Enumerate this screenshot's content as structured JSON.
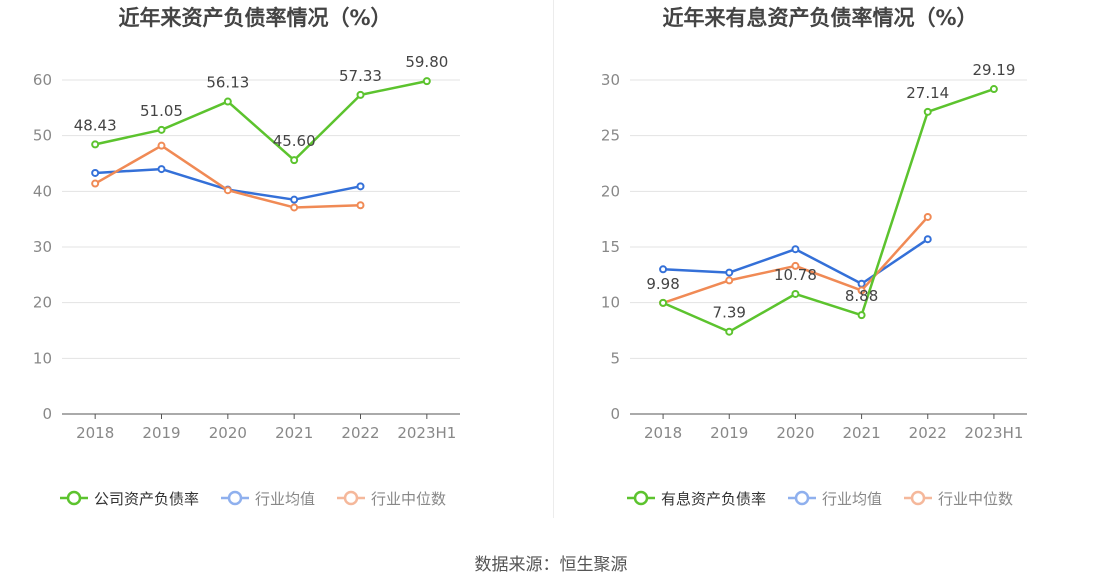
{
  "source": "数据来源：恒生聚源",
  "chart_data": [
    {
      "type": "line",
      "title": "近年来资产负债率情况（%）",
      "categories": [
        "2018",
        "2019",
        "2020",
        "2021",
        "2022",
        "2023H1"
      ],
      "ylim": [
        0,
        60
      ],
      "yticks": [
        0,
        10,
        20,
        30,
        40,
        50,
        60
      ],
      "grid": true,
      "legend_position": "bottom-left",
      "series": [
        {
          "name": "公司资产负债率",
          "color": "#5cc32e",
          "labels": true,
          "values": [
            48.43,
            51.05,
            56.13,
            45.6,
            57.33,
            59.8
          ]
        },
        {
          "name": "行业均值",
          "color": "#3470d8",
          "labels": false,
          "values": [
            43.3,
            44.0,
            40.3,
            38.5,
            40.9,
            null
          ]
        },
        {
          "name": "行业中位数",
          "color": "#f08a55",
          "labels": false,
          "values": [
            41.4,
            48.2,
            40.2,
            37.1,
            37.5,
            null
          ]
        }
      ]
    },
    {
      "type": "line",
      "title": "近年来有息资产负债率情况（%）",
      "categories": [
        "2018",
        "2019",
        "2020",
        "2021",
        "2022",
        "2023H1"
      ],
      "ylim": [
        0,
        30
      ],
      "yticks": [
        0,
        5,
        10,
        15,
        20,
        25,
        30
      ],
      "grid": true,
      "legend_position": "bottom-left",
      "series": [
        {
          "name": "有息资产负债率",
          "color": "#5cc32e",
          "labels": true,
          "values": [
            9.98,
            7.39,
            10.78,
            8.88,
            27.14,
            29.19
          ]
        },
        {
          "name": "行业均值",
          "color": "#3470d8",
          "labels": false,
          "values": [
            13.0,
            12.7,
            14.8,
            11.7,
            15.7,
            null
          ]
        },
        {
          "name": "行业中位数",
          "color": "#f08a55",
          "labels": false,
          "values": [
            9.98,
            12.0,
            13.3,
            11.1,
            17.7,
            null
          ]
        }
      ]
    }
  ]
}
